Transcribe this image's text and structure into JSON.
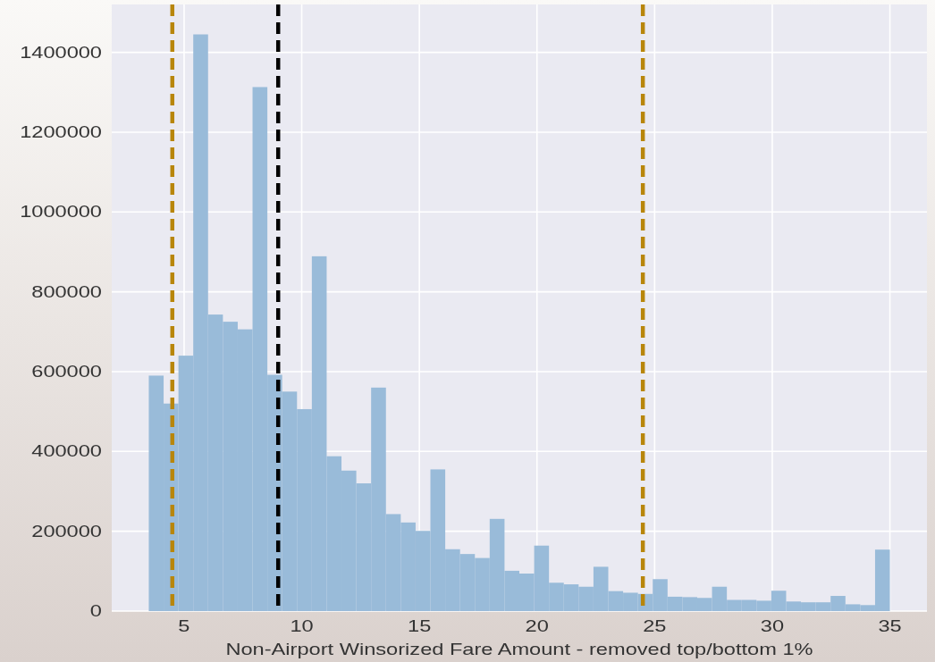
{
  "chart_data": {
    "type": "histogram",
    "xlabel": "Non-Airport Winsorized Fare Amount - removed top/bottom 1%",
    "bins": [
      3.5,
      4.13,
      4.76,
      5.39,
      6.02,
      6.65,
      7.28,
      7.91,
      8.54,
      9.17,
      9.8,
      10.43,
      11.06,
      11.69,
      12.32,
      12.95,
      13.58,
      14.21,
      14.84,
      15.47,
      16.1,
      16.73,
      17.36,
      17.99,
      18.62,
      19.25,
      19.88,
      20.51,
      21.14,
      21.77,
      22.4,
      23.03,
      23.66,
      24.29,
      24.92,
      25.55,
      26.18,
      26.81,
      27.44,
      28.07,
      28.7,
      29.33,
      29.96,
      30.59,
      31.22,
      31.85,
      32.48,
      33.11,
      33.74,
      34.37,
      35.0
    ],
    "values": [
      590000,
      520000,
      640000,
      1445000,
      743000,
      725000,
      706000,
      1313000,
      592000,
      550000,
      506000,
      889000,
      388000,
      352000,
      320000,
      560000,
      243000,
      222000,
      201000,
      355000,
      155000,
      143000,
      133000,
      231000,
      101000,
      94000,
      164000,
      71000,
      67000,
      61000,
      111000,
      50000,
      46000,
      43000,
      80000,
      36000,
      35000,
      33000,
      61000,
      28000,
      28000,
      26000,
      51000,
      24000,
      22000,
      22000,
      38000,
      17000,
      15000,
      154000
    ],
    "color": "#99bbd9",
    "xlim": [
      1.925,
      36.575
    ],
    "ylim": [
      0,
      1520000
    ],
    "xticks": [
      5,
      10,
      15,
      20,
      25,
      30,
      35
    ],
    "yticks": [
      0,
      200000,
      400000,
      600000,
      800000,
      1000000,
      1200000,
      1400000
    ],
    "grid": true,
    "ref_lines": [
      {
        "axis": "x",
        "value": 4.5,
        "color": "#b8860b",
        "line_style": "dashed"
      },
      {
        "axis": "x",
        "value": 9.0,
        "color": "#000000",
        "line_style": "dashed"
      },
      {
        "axis": "x",
        "value": 24.5,
        "color": "#b8860b",
        "line_style": "dashed"
      }
    ]
  }
}
